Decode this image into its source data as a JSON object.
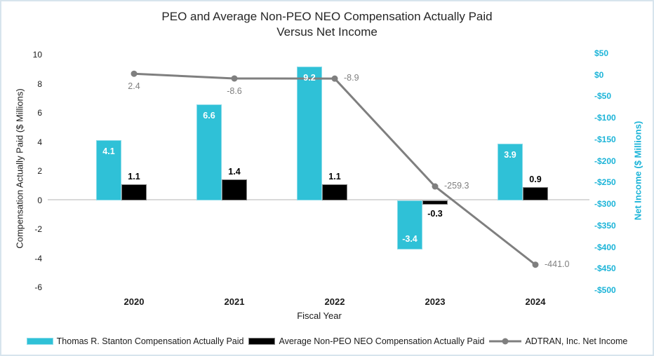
{
  "chart_data": {
    "type": "combo",
    "title_line1": "PEO and Average Non-PEO NEO Compensation Actually Paid",
    "title_line2": "Versus Net Income",
    "categories": [
      "2020",
      "2021",
      "2022",
      "2023",
      "2024"
    ],
    "x_axis": {
      "title": "Fiscal Year"
    },
    "left_axis": {
      "title": "Compensation Actually Paid ($ Millions)",
      "min": -6,
      "max": 10,
      "tick_values": [
        10,
        8,
        6,
        4,
        2,
        0,
        -2,
        -4,
        -6
      ],
      "tick_labels": [
        "10",
        "8",
        "6",
        "4",
        "2",
        "0",
        "-2",
        "-4",
        "-6"
      ]
    },
    "right_axis": {
      "title": "Net Income ($ Millions)",
      "min": -500,
      "max": 50,
      "tick_values": [
        50,
        0,
        -50,
        -100,
        -150,
        -200,
        -250,
        -300,
        -350,
        -400,
        -450,
        -500
      ],
      "tick_labels": [
        "$50",
        "$0",
        "-$50",
        "-$100",
        "-$150",
        "-$200",
        "-$250",
        "-$300",
        "-$350",
        "-$400",
        "-$450",
        "-$500"
      ]
    },
    "series": [
      {
        "name": "Thomas R. Stanton Compensation Actually Paid",
        "type": "bar",
        "color": "#2FC1D7",
        "border_color": "#8ADBE9",
        "label_color": "#ffffff",
        "values": [
          4.1,
          6.6,
          9.2,
          -3.4,
          3.9
        ],
        "labels": [
          "4.1",
          "6.6",
          "9.2",
          "-3.4",
          "3.9"
        ]
      },
      {
        "name": "Average Non-PEO NEO Compensation Actually Paid",
        "type": "bar",
        "color": "#000000",
        "border_color": "#808080",
        "label_color": "#000000",
        "values": [
          1.1,
          1.4,
          1.1,
          -0.3,
          0.9
        ],
        "labels": [
          "1.1",
          "1.4",
          "1.1",
          "-0.3",
          "0.9"
        ]
      },
      {
        "name": "ADTRAN, Inc. Net Income",
        "type": "line",
        "color": "#7F7F7F",
        "label_color": "#7F7F7F",
        "values": [
          2.4,
          -8.6,
          -8.9,
          -259.3,
          -441.0
        ],
        "labels": [
          "2.4",
          "-8.6",
          "-8.9",
          "-259.3",
          "-441.0"
        ],
        "label_positions": [
          "below",
          "below",
          "right",
          "right",
          "right"
        ]
      }
    ],
    "colors": {
      "right_axis_text": "#1CB4D8",
      "gridline": "#D9D9D9",
      "page_border": "#D7E4ED"
    },
    "legend_position": "bottom",
    "grid": "zero-line-only"
  }
}
